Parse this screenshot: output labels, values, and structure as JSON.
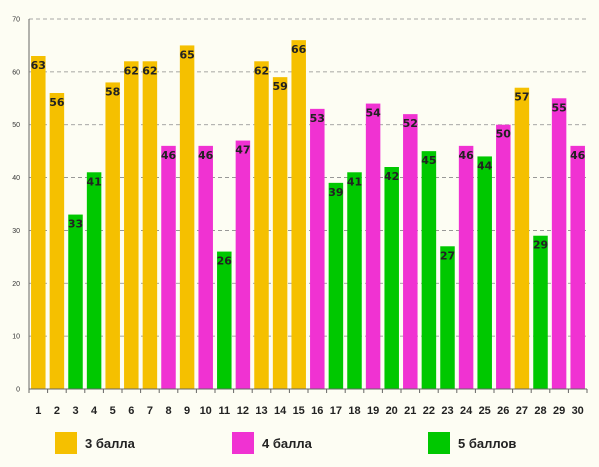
{
  "chart_data": {
    "type": "bar",
    "categories": [
      "1",
      "2",
      "3",
      "4",
      "5",
      "6",
      "7",
      "8",
      "9",
      "10",
      "11",
      "12",
      "13",
      "14",
      "15",
      "16",
      "17",
      "18",
      "19",
      "20",
      "21",
      "22",
      "23",
      "24",
      "25",
      "26",
      "27",
      "28",
      "29",
      "30"
    ],
    "values": [
      63,
      56,
      33,
      41,
      58,
      62,
      62,
      46,
      65,
      46,
      26,
      47,
      62,
      59,
      66,
      53,
      39,
      41,
      54,
      42,
      52,
      45,
      27,
      46,
      44,
      50,
      57,
      29,
      55,
      46
    ],
    "groups": [
      "3",
      "3",
      "5",
      "5",
      "3",
      "3",
      "3",
      "4",
      "3",
      "4",
      "5",
      "4",
      "3",
      "3",
      "3",
      "4",
      "5",
      "5",
      "4",
      "5",
      "4",
      "5",
      "5",
      "4",
      "5",
      "4",
      "3",
      "5",
      "4",
      "4"
    ],
    "legend": [
      {
        "key": "3",
        "label": "3 балла",
        "color": "#f5c000"
      },
      {
        "key": "4",
        "label": "4 балла",
        "color": "#f032d2"
      },
      {
        "key": "5",
        "label": "5 баллов",
        "color": "#00c800"
      }
    ],
    "ylim": [
      0,
      70
    ],
    "yticks": [
      0,
      10,
      20,
      30,
      40,
      50,
      60,
      70
    ],
    "grid": true,
    "legend_position": "bottom",
    "title": "",
    "xlabel": "",
    "ylabel": ""
  }
}
